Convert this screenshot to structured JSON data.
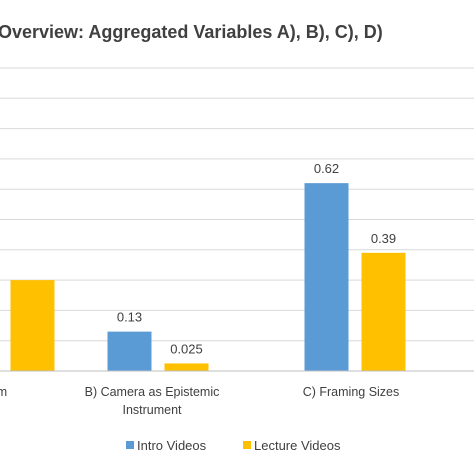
{
  "chart_data": {
    "type": "bar",
    "title": "Overview: Aggregated Variables A), B), C), D)",
    "categories": [
      [
        "m"
      ],
      [
        "B) Camera as Epistemic",
        "Instrument"
      ],
      [
        "C) Framing Sizes"
      ]
    ],
    "series": [
      {
        "name": "Intro Videos",
        "color": "#5b9bd5",
        "values": [
          null,
          0.13,
          0.62
        ]
      },
      {
        "name": "Lecture Videos",
        "color": "#ffc000",
        "values": [
          0.3,
          0.025,
          0.39
        ]
      }
    ],
    "data_labels": [
      [
        null,
        "0.13",
        "0.62"
      ],
      [
        null,
        "0.025",
        "0.39"
      ]
    ],
    "ylim": [
      0,
      1.0
    ],
    "grid": true,
    "legend_position": "bottom"
  }
}
